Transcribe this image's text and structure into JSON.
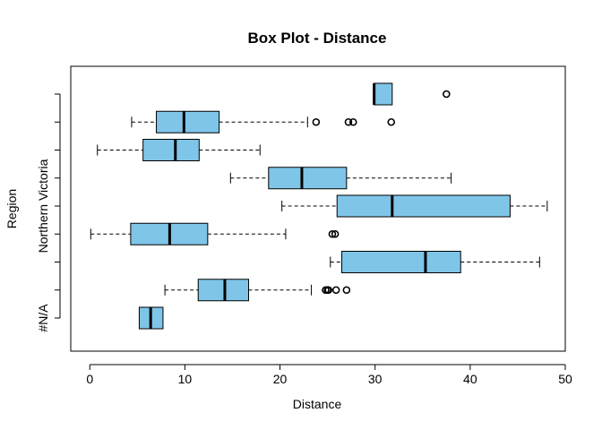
{
  "chart_data": {
    "type": "boxplot",
    "orientation": "horizontal",
    "title": "Box Plot - Distance",
    "xlabel": "Distance",
    "ylabel": "Region",
    "xlim": [
      -2,
      50
    ],
    "x_ticks": [
      0,
      10,
      20,
      30,
      40,
      50
    ],
    "y_tick_labels": [
      "#N/A",
      "",
      "",
      "",
      "Northern Victoria",
      "",
      "",
      "",
      ""
    ],
    "box_fill": "#7ec5e8",
    "box_stroke": "#000000",
    "grid": false,
    "series": [
      {
        "name": "#N/A",
        "whisker_low": 5.2,
        "q1": 5.2,
        "median": 6.4,
        "q3": 7.7,
        "whisker_high": 7.7,
        "outliers": []
      },
      {
        "name": "",
        "whisker_low": 7.9,
        "q1": 11.4,
        "median": 14.2,
        "q3": 16.7,
        "whisker_high": 23.3,
        "outliers": [
          24.8,
          25.0,
          25.1,
          25.9,
          27.0
        ]
      },
      {
        "name": "",
        "whisker_low": 25.3,
        "q1": 26.5,
        "median": 35.3,
        "q3": 39.0,
        "whisker_high": 47.3,
        "outliers": []
      },
      {
        "name": "",
        "whisker_low": 0.1,
        "q1": 4.3,
        "median": 8.4,
        "q3": 12.4,
        "whisker_high": 20.6,
        "outliers": [
          25.5,
          25.8
        ]
      },
      {
        "name": "Northern Victoria",
        "whisker_low": 20.2,
        "q1": 26.0,
        "median": 31.8,
        "q3": 44.2,
        "whisker_high": 48.1,
        "outliers": []
      },
      {
        "name": "",
        "whisker_low": 14.8,
        "q1": 18.8,
        "median": 22.3,
        "q3": 27.0,
        "whisker_high": 38.0,
        "outliers": []
      },
      {
        "name": "",
        "whisker_low": 0.8,
        "q1": 5.6,
        "median": 9.0,
        "q3": 11.5,
        "whisker_high": 17.9,
        "outliers": []
      },
      {
        "name": "",
        "whisker_low": 4.4,
        "q1": 7.0,
        "median": 9.9,
        "q3": 13.6,
        "whisker_high": 22.9,
        "outliers": [
          23.8,
          27.2,
          27.7,
          31.7
        ]
      },
      {
        "name": "",
        "whisker_low": 29.9,
        "q1": 29.9,
        "median": 29.9,
        "q3": 31.8,
        "whisker_high": 31.8,
        "outliers": [
          37.5
        ]
      }
    ]
  }
}
